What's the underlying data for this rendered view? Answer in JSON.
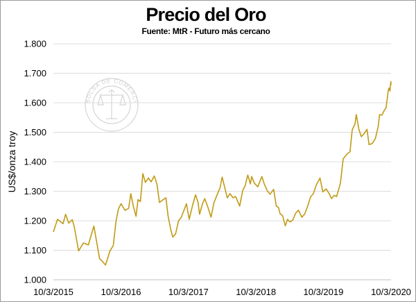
{
  "chart_data": {
    "type": "line",
    "title": "Precio del Oro",
    "subtitle": "Fuente: MtR - Futuro más cercano",
    "ylabel": "US$/onza troy",
    "xlabel": "",
    "ylim": [
      1000,
      1800
    ],
    "yticks": [
      1000,
      1100,
      1200,
      1300,
      1400,
      1500,
      1600,
      1700,
      1800
    ],
    "ytick_labels": [
      "1.000",
      "1.100",
      "1.200",
      "1.300",
      "1.400",
      "1.500",
      "1.600",
      "1.700",
      "1.800"
    ],
    "xlim": [
      "2015-03-10",
      "2020-03-10"
    ],
    "xticks": [
      "2015-03-10",
      "2016-03-10",
      "2017-03-10",
      "2018-03-10",
      "2019-03-10",
      "2020-03-10"
    ],
    "xtick_labels": [
      "10/3/2015",
      "10/3/2016",
      "10/3/2017",
      "10/3/2018",
      "10/3/2019",
      "10/3/2020"
    ],
    "grid": "horizontal",
    "legend": "none",
    "series": [
      {
        "color": "#c09a14",
        "x": [
          "2015-03-10",
          "2015-04-01",
          "2015-05-01",
          "2015-05-15",
          "2015-06-01",
          "2015-06-20",
          "2015-07-01",
          "2015-07-24",
          "2015-08-20",
          "2015-09-15",
          "2015-10-15",
          "2015-11-15",
          "2015-12-01",
          "2015-12-17",
          "2016-01-10",
          "2016-01-28",
          "2016-02-11",
          "2016-02-25",
          "2016-03-10",
          "2016-04-01",
          "2016-04-20",
          "2016-05-02",
          "2016-05-15",
          "2016-05-30",
          "2016-06-10",
          "2016-06-23",
          "2016-07-06",
          "2016-07-20",
          "2016-08-05",
          "2016-08-20",
          "2016-09-06",
          "2016-09-20",
          "2016-10-04",
          "2016-10-20",
          "2016-11-08",
          "2016-11-20",
          "2016-12-05",
          "2016-12-15",
          "2016-12-30",
          "2017-01-15",
          "2017-01-30",
          "2017-02-15",
          "2017-02-27",
          "2017-03-14",
          "2017-04-01",
          "2017-04-17",
          "2017-05-01",
          "2017-05-09",
          "2017-05-25",
          "2017-06-06",
          "2017-06-20",
          "2017-07-10",
          "2017-07-25",
          "2017-08-10",
          "2017-08-28",
          "2017-09-08",
          "2017-09-20",
          "2017-10-06",
          "2017-10-20",
          "2017-11-06",
          "2017-11-20",
          "2017-12-12",
          "2017-12-28",
          "2018-01-10",
          "2018-01-25",
          "2018-02-08",
          "2018-02-15",
          "2018-03-01",
          "2018-03-20",
          "2018-04-11",
          "2018-04-24",
          "2018-05-10",
          "2018-05-25",
          "2018-06-14",
          "2018-06-28",
          "2018-07-10",
          "2018-07-19",
          "2018-08-01",
          "2018-08-16",
          "2018-08-28",
          "2018-09-10",
          "2018-09-25",
          "2018-10-11",
          "2018-10-26",
          "2018-11-13",
          "2018-11-28",
          "2018-12-14",
          "2018-12-31",
          "2019-01-15",
          "2019-01-31",
          "2019-02-20",
          "2019-03-07",
          "2019-03-25",
          "2019-04-10",
          "2019-04-23",
          "2019-05-07",
          "2019-05-20",
          "2019-05-31",
          "2019-06-10",
          "2019-06-25",
          "2019-07-10",
          "2019-07-19",
          "2019-08-01",
          "2019-08-13",
          "2019-08-28",
          "2019-09-04",
          "2019-09-18",
          "2019-10-01",
          "2019-10-16",
          "2019-11-01",
          "2019-11-12",
          "2019-11-29",
          "2019-12-16",
          "2019-12-31",
          "2020-01-08",
          "2020-01-21",
          "2020-02-03",
          "2020-02-12",
          "2020-02-24",
          "2020-02-28",
          "2020-03-04",
          "2020-03-09",
          "2020-03-10"
        ],
        "values": [
          1162,
          1205,
          1190,
          1222,
          1192,
          1204,
          1180,
          1098,
          1125,
          1118,
          1182,
          1072,
          1062,
          1050,
          1098,
          1116,
          1195,
          1240,
          1258,
          1235,
          1242,
          1292,
          1250,
          1215,
          1272,
          1265,
          1360,
          1330,
          1345,
          1332,
          1352,
          1325,
          1262,
          1270,
          1278,
          1215,
          1168,
          1145,
          1155,
          1200,
          1212,
          1238,
          1258,
          1205,
          1252,
          1288,
          1262,
          1222,
          1258,
          1275,
          1252,
          1212,
          1260,
          1285,
          1312,
          1348,
          1318,
          1278,
          1292,
          1278,
          1282,
          1250,
          1302,
          1318,
          1355,
          1325,
          1350,
          1328,
          1315,
          1350,
          1325,
          1302,
          1290,
          1306,
          1250,
          1245,
          1223,
          1218,
          1183,
          1205,
          1196,
          1202,
          1226,
          1236,
          1212,
          1222,
          1248,
          1281,
          1292,
          1322,
          1345,
          1298,
          1308,
          1292,
          1275,
          1286,
          1282,
          1305,
          1328,
          1410,
          1422,
          1428,
          1434,
          1508,
          1528,
          1560,
          1510,
          1485,
          1495,
          1510,
          1458,
          1462,
          1478,
          1517,
          1560,
          1558,
          1575,
          1582,
          1642,
          1650,
          1640,
          1672,
          1660
        ]
      }
    ],
    "watermark": {
      "text_top": "BOLSA DE COMERCIO DE ROSARIO",
      "text_bottom": ""
    }
  }
}
